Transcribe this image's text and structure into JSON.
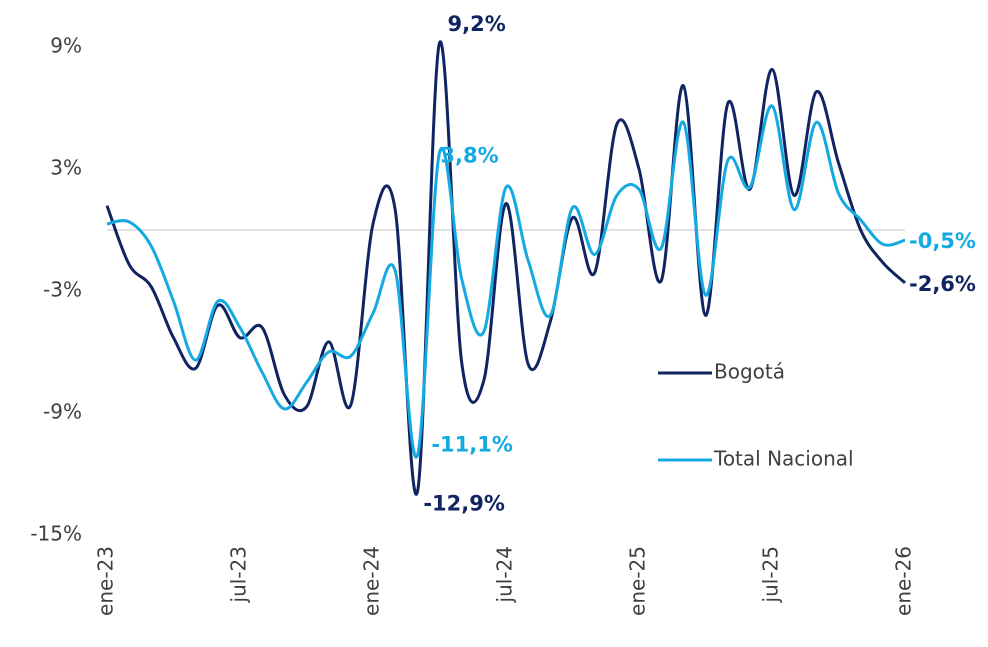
{
  "chart_data": {
    "type": "line",
    "categories": [
      "ene-23",
      null,
      null,
      null,
      null,
      null,
      "jul-23",
      null,
      null,
      null,
      null,
      null,
      "ene-24",
      null,
      null,
      null,
      null,
      null,
      "jul-24",
      null,
      null,
      null,
      null,
      null,
      "ene-25",
      null,
      null,
      null,
      null,
      null,
      "jul-25",
      null,
      null,
      null,
      null,
      null,
      "ene-26"
    ],
    "series": [
      {
        "name": "Bogotá",
        "color": "#0f2461",
        "values": [
          1.2,
          -1.7,
          -2.8,
          -5.3,
          -6.8,
          -3.7,
          -5.3,
          -4.8,
          -8.1,
          -8.7,
          -5.5,
          -8.6,
          0.3,
          1.0,
          -12.9,
          9.2,
          -6.5,
          -7.4,
          1.3,
          -6.6,
          -4.5,
          0.6,
          -2.1,
          5.2,
          3.0,
          -2.5,
          7.1,
          -4.2,
          6.2,
          2.0,
          7.9,
          1.7,
          6.8,
          3.3,
          0.0,
          -1.6,
          -2.6
        ],
        "value_labels": [
          null,
          null,
          null,
          null,
          null,
          null,
          null,
          null,
          null,
          null,
          null,
          null,
          null,
          null,
          "-12,9%",
          "9,2%",
          null,
          null,
          null,
          null,
          null,
          null,
          null,
          null,
          null,
          null,
          null,
          null,
          null,
          null,
          null,
          null,
          null,
          null,
          null,
          null,
          "-2,6%"
        ]
      },
      {
        "name": "Total Nacional",
        "color": "#14a9e1",
        "values": [
          0.3,
          0.4,
          -0.8,
          -3.5,
          -6.4,
          -3.5,
          -4.8,
          -7.0,
          -8.8,
          -7.5,
          -6.0,
          -6.2,
          -4.1,
          -2.0,
          -11.1,
          3.8,
          -2.4,
          -5.0,
          2.1,
          -1.5,
          -4.2,
          1.1,
          -1.2,
          1.7,
          2.0,
          -0.9,
          5.3,
          -3.2,
          3.4,
          2.1,
          6.1,
          1.0,
          5.3,
          1.8,
          0.5,
          -0.7,
          -0.5
        ],
        "value_labels": [
          null,
          null,
          null,
          null,
          null,
          null,
          null,
          null,
          null,
          null,
          null,
          null,
          null,
          null,
          "-11,1%",
          "3,8%",
          null,
          null,
          null,
          null,
          null,
          null,
          null,
          null,
          null,
          null,
          null,
          null,
          null,
          null,
          null,
          null,
          null,
          null,
          null,
          null,
          "-0,5%"
        ]
      }
    ],
    "ylim": [
      -15,
      10.5
    ],
    "yticks": [
      {
        "value": -15,
        "label": "-15%"
      },
      {
        "value": -9,
        "label": "-9%"
      },
      {
        "value": -3,
        "label": "-3%"
      },
      {
        "value": 3,
        "label": "3%"
      },
      {
        "value": 9,
        "label": "9%"
      }
    ],
    "legend": "right"
  }
}
